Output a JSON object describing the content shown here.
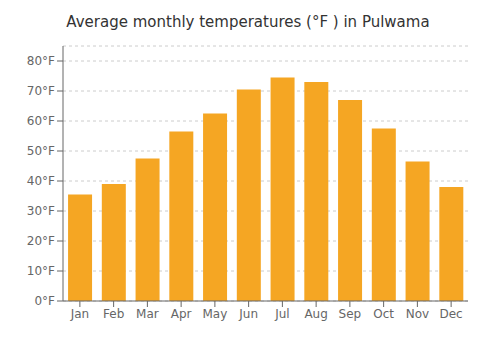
{
  "chart_data": {
    "type": "bar",
    "title": "Average monthly temperatures (°F ) in Pulwama",
    "categories": [
      "Jan",
      "Feb",
      "Mar",
      "Apr",
      "May",
      "Jun",
      "Jul",
      "Aug",
      "Sep",
      "Oct",
      "Nov",
      "Dec"
    ],
    "values": [
      35.5,
      39.0,
      47.5,
      56.5,
      62.5,
      70.5,
      74.5,
      73.0,
      67.0,
      57.5,
      46.5,
      38.0
    ],
    "color": "#F5A623",
    "ylim": [
      0,
      85
    ],
    "yticks": [
      {
        "value": 0,
        "label": "0°F"
      },
      {
        "value": 10,
        "label": "10°F"
      },
      {
        "value": 20,
        "label": "20°F"
      },
      {
        "value": 30,
        "label": "30°F"
      },
      {
        "value": 40,
        "label": "40°F"
      },
      {
        "value": 50,
        "label": "50°F"
      },
      {
        "value": 60,
        "label": "60°F"
      },
      {
        "value": 70,
        "label": "70°F"
      },
      {
        "value": 80,
        "label": "80°F"
      }
    ],
    "grid": true
  }
}
